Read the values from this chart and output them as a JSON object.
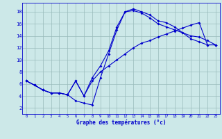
{
  "xlabel": "Graphe des températures (°c)",
  "bg_color": "#cce8e8",
  "grid_color": "#99bbbb",
  "line_color": "#0000cc",
  "xlim": [
    -0.5,
    23.5
  ],
  "ylim": [
    1.0,
    19.5
  ],
  "xticks": [
    0,
    1,
    2,
    3,
    4,
    5,
    6,
    7,
    8,
    9,
    10,
    11,
    12,
    13,
    14,
    15,
    16,
    17,
    18,
    19,
    20,
    21,
    22,
    23
  ],
  "yticks": [
    2,
    4,
    6,
    8,
    10,
    12,
    14,
    16,
    18
  ],
  "line1_x": [
    0,
    1,
    2,
    3,
    4,
    5,
    6,
    7,
    8,
    9,
    10,
    11,
    12,
    13,
    14,
    15,
    16,
    17,
    18,
    19,
    20,
    21,
    22,
    23
  ],
  "line1_y": [
    6.5,
    5.8,
    5.0,
    4.5,
    4.5,
    4.2,
    3.2,
    2.8,
    2.5,
    7.0,
    11.0,
    15.0,
    18.0,
    18.5,
    18.0,
    17.5,
    16.5,
    16.2,
    15.5,
    14.5,
    13.5,
    13.0,
    12.5,
    12.5
  ],
  "line2_x": [
    0,
    1,
    2,
    3,
    4,
    5,
    6,
    7,
    8,
    9,
    10,
    11,
    12,
    13,
    14,
    15,
    16,
    17,
    18,
    19,
    20,
    21,
    22,
    23
  ],
  "line2_y": [
    6.5,
    5.8,
    5.0,
    4.5,
    4.5,
    4.2,
    6.5,
    4.0,
    7.0,
    9.0,
    11.5,
    15.5,
    18.0,
    18.2,
    17.8,
    17.0,
    16.0,
    15.5,
    15.0,
    14.5,
    14.0,
    13.8,
    13.2,
    12.5
  ],
  "line3_x": [
    0,
    1,
    2,
    3,
    4,
    5,
    6,
    7,
    8,
    9,
    10,
    11,
    12,
    13,
    14,
    15,
    16,
    17,
    18,
    19,
    20,
    21,
    22,
    23
  ],
  "line3_y": [
    6.5,
    5.8,
    5.0,
    4.5,
    4.5,
    4.2,
    6.5,
    4.0,
    6.5,
    8.0,
    9.0,
    10.0,
    11.0,
    12.0,
    12.8,
    13.2,
    13.8,
    14.3,
    14.8,
    15.3,
    15.8,
    16.2,
    12.5,
    12.5
  ]
}
